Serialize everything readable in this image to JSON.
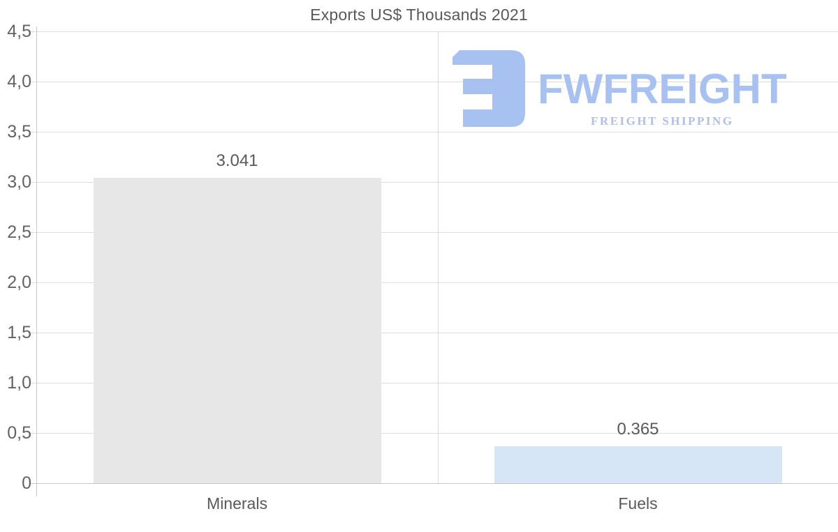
{
  "title": "Exports US$ Thousands 2021",
  "logo": {
    "wordmark": "FWFREIGHT",
    "tagline": "FREIGHT SHIPPING",
    "colors": {
      "primary": "#a7c2f0",
      "tagline": "#b1bfe7"
    }
  },
  "chart_data": {
    "type": "bar",
    "title": "Exports US$ Thousands 2021",
    "categories": [
      "Minerals",
      "Fuels"
    ],
    "values": [
      3.041,
      0.365
    ],
    "value_labels": [
      "3.041",
      "0.365"
    ],
    "bar_colors": [
      "#e7e7e7",
      "#d7e6f7"
    ],
    "xlabel": "",
    "ylabel": "",
    "ylim": [
      0,
      4.5
    ],
    "ytick_step": 0.5,
    "ytick_labels": [
      "0",
      "0,5",
      "1,0",
      "1,5",
      "2,0",
      "2,5",
      "3,0",
      "3,5",
      "4,0",
      "4,5"
    ],
    "grid": true,
    "legend": "none",
    "colors": {
      "grid": "#dcdcdc",
      "zero_line": "#c6c6c6",
      "axis": "#c9c9c9",
      "text": "#595959"
    }
  }
}
